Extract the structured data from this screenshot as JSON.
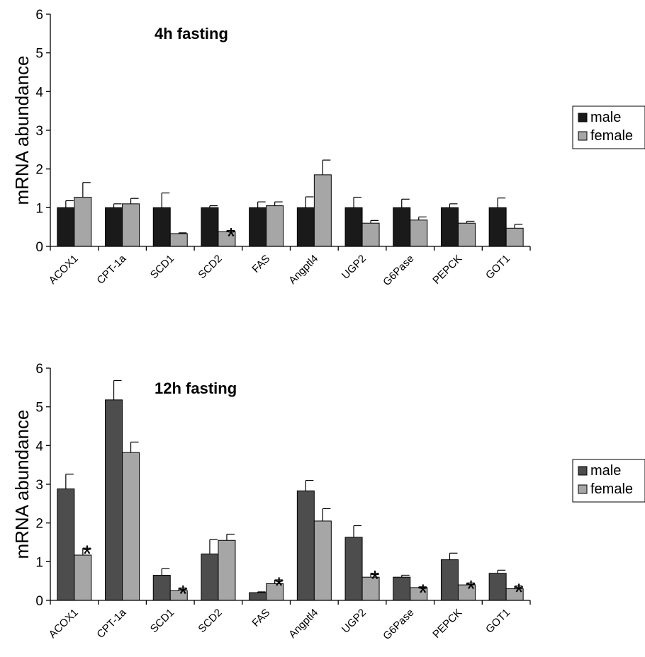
{
  "chart_data": [
    {
      "type": "bar",
      "title": "4h fasting",
      "xlabel": "",
      "ylabel": "mRNA abundance",
      "ylim": [
        0,
        6
      ],
      "yticks": [
        0,
        1,
        2,
        3,
        4,
        5,
        6
      ],
      "grid": false,
      "legend": "right",
      "categories": [
        "ACOX1",
        "CPT-1a",
        "SCD1",
        "SCD2",
        "FAS",
        "Angptl4",
        "UGP2",
        "G6Pase",
        "PEPCK",
        "GOT1"
      ],
      "series": [
        {
          "name": "male",
          "color": "#1a1a1a",
          "values": [
            1.0,
            1.0,
            1.0,
            1.0,
            1.0,
            1.0,
            1.0,
            1.0,
            1.0,
            1.0
          ],
          "errors": [
            0.18,
            0.1,
            0.38,
            0.05,
            0.15,
            0.28,
            0.27,
            0.22,
            0.1,
            0.25
          ],
          "significant": [
            false,
            false,
            false,
            false,
            false,
            false,
            false,
            false,
            false,
            false
          ]
        },
        {
          "name": "female",
          "color": "#a6a6a6",
          "values": [
            1.27,
            1.1,
            0.33,
            0.38,
            1.05,
            1.85,
            0.6,
            0.68,
            0.6,
            0.47
          ],
          "errors": [
            0.38,
            0.14,
            0.02,
            0.03,
            0.1,
            0.38,
            0.07,
            0.08,
            0.05,
            0.1
          ],
          "significant": [
            false,
            false,
            false,
            true,
            false,
            false,
            false,
            false,
            false,
            false
          ]
        }
      ]
    },
    {
      "type": "bar",
      "title": "12h fasting",
      "xlabel": "",
      "ylabel": "mRNA abundance",
      "ylim": [
        0,
        6
      ],
      "yticks": [
        0,
        1,
        2,
        3,
        4,
        5,
        6
      ],
      "grid": false,
      "legend": "right",
      "categories": [
        "ACOX1",
        "CPT-1a",
        "SCD1",
        "SCD2",
        "FAS",
        "Angptl4",
        "UGP2",
        "G6Pase",
        "PEPCK",
        "GOT1"
      ],
      "series": [
        {
          "name": "male",
          "color": "#4d4d4d",
          "values": [
            2.88,
            5.18,
            0.65,
            1.2,
            0.2,
            2.83,
            1.63,
            0.6,
            1.05,
            0.7
          ],
          "errors": [
            0.38,
            0.5,
            0.17,
            0.37,
            0.02,
            0.27,
            0.3,
            0.05,
            0.17,
            0.08
          ],
          "significant": [
            false,
            false,
            false,
            false,
            false,
            false,
            false,
            false,
            false,
            false
          ]
        },
        {
          "name": "female",
          "color": "#a6a6a6",
          "values": [
            1.17,
            3.82,
            0.25,
            1.55,
            0.43,
            2.05,
            0.6,
            0.33,
            0.4,
            0.3
          ],
          "errors": [
            0.18,
            0.27,
            0.07,
            0.16,
            0.1,
            0.32,
            0.1,
            0.02,
            0.05,
            0.07
          ],
          "significant": [
            true,
            false,
            true,
            false,
            true,
            false,
            true,
            true,
            true,
            true
          ]
        }
      ]
    }
  ]
}
